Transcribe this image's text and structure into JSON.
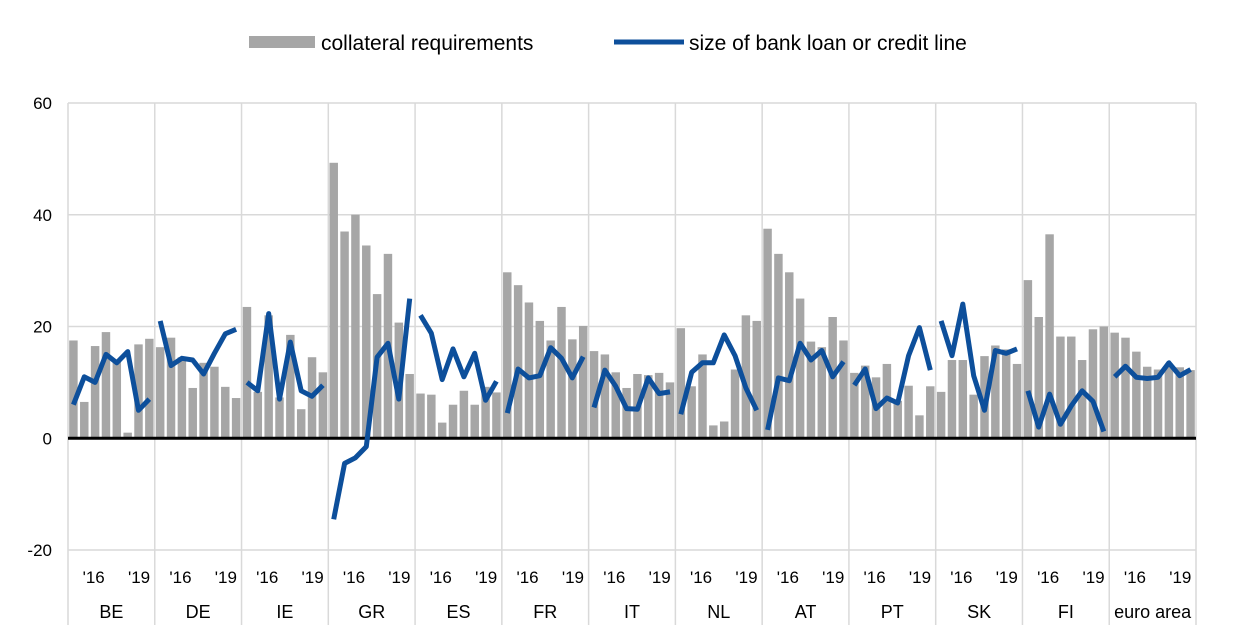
{
  "chart_data": {
    "type": "bar",
    "title": "",
    "xlabel": "",
    "ylabel": "",
    "ylim": [
      -20,
      60
    ],
    "yticks": [
      -20,
      0,
      20,
      40,
      60
    ],
    "grid": true,
    "legend_position": "top-center",
    "year_ticks": [
      "'16",
      "'19"
    ],
    "series": [
      {
        "name": "collateral requirements",
        "type": "bar",
        "color": "#a6a6a6"
      },
      {
        "name": "size of bank loan or credit line",
        "type": "line",
        "color": "#0d4f9b"
      }
    ],
    "groups": [
      {
        "label": "BE",
        "bars": [
          17.5,
          6.5,
          16.5,
          19,
          14,
          1,
          16.8,
          17.8
        ],
        "line": [
          6,
          11,
          10,
          15,
          13.5,
          15.5,
          5,
          7
        ]
      },
      {
        "label": "DE",
        "bars": [
          16.3,
          18,
          14.5,
          9,
          13.5,
          12.8,
          9.2,
          7.2
        ],
        "line": [
          21,
          13,
          14.3,
          14,
          11.5,
          15.2,
          18.7,
          19.5
        ]
      },
      {
        "label": "IE",
        "bars": [
          23.5,
          8.3,
          22,
          7.3,
          18.5,
          5.2,
          14.5,
          11.8
        ],
        "line": [
          10,
          8.5,
          22.3,
          7,
          17.2,
          8.5,
          7.5,
          9.5
        ]
      },
      {
        "label": "GR",
        "bars": [
          49.3,
          37,
          40,
          34.5,
          25.8,
          33,
          20.7,
          11.5
        ],
        "line": [
          -14.5,
          -4.5,
          -3.5,
          -1.5,
          14.5,
          17,
          7,
          25
        ]
      },
      {
        "label": "ES",
        "bars": [
          8,
          7.8,
          2.8,
          6,
          8.5,
          6,
          9.2,
          8.2
        ],
        "line": [
          22,
          18.8,
          10.5,
          16,
          11,
          15.2,
          6.8,
          10.2
        ]
      },
      {
        "label": "FR",
        "bars": [
          29.7,
          27.4,
          24.3,
          21,
          17.5,
          23.5,
          17.7,
          20.1
        ],
        "line": [
          4.5,
          12.4,
          10.8,
          11.2,
          16.2,
          14.3,
          10.8,
          14.6
        ]
      },
      {
        "label": "IT",
        "bars": [
          15.6,
          15,
          11.8,
          9,
          11.5,
          11.3,
          11.7,
          10
        ],
        "line": [
          5.5,
          12.2,
          9.3,
          5.3,
          5.2,
          10.8,
          8,
          8.3
        ]
      },
      {
        "label": "NL",
        "bars": [
          19.7,
          9.3,
          15,
          2.3,
          3,
          12.3,
          22,
          21
        ],
        "line": [
          4.3,
          11.8,
          13.5,
          13.5,
          18.5,
          14.8,
          9,
          5
        ]
      },
      {
        "label": "AT",
        "bars": [
          37.5,
          33,
          29.7,
          25,
          17.3,
          16.3,
          21.7,
          17.5
        ],
        "line": [
          1.5,
          10.8,
          10.3,
          17,
          14,
          15.7,
          11,
          13.7
        ]
      },
      {
        "label": "PT",
        "bars": [
          11.7,
          13,
          10.9,
          13.3,
          6.7,
          9.4,
          4.1,
          9.3
        ],
        "line": [
          9.5,
          12.4,
          5.3,
          7.2,
          6.3,
          14.8,
          19.8,
          12.2
        ]
      },
      {
        "label": "SK",
        "bars": [
          8.3,
          14,
          14,
          7.8,
          14.7,
          16.6,
          15.9,
          13.3
        ],
        "line": [
          21,
          14.8,
          24,
          11.2,
          5,
          15.7,
          15.2,
          16
        ]
      },
      {
        "label": "FI",
        "bars": [
          28.3,
          21.7,
          36.5,
          18.2,
          18.2,
          14,
          19.5,
          20
        ],
        "line": [
          8.5,
          2,
          7.9,
          2.5,
          5.8,
          8.5,
          6.6,
          1.2
        ]
      },
      {
        "label": "euro area",
        "bars": [
          18.9,
          18,
          15.5,
          12.8,
          12.3,
          13.2,
          12.7,
          12.2
        ],
        "line": [
          11,
          12.9,
          10.9,
          10.7,
          10.9,
          13.5,
          11.2,
          12.3
        ]
      }
    ]
  }
}
